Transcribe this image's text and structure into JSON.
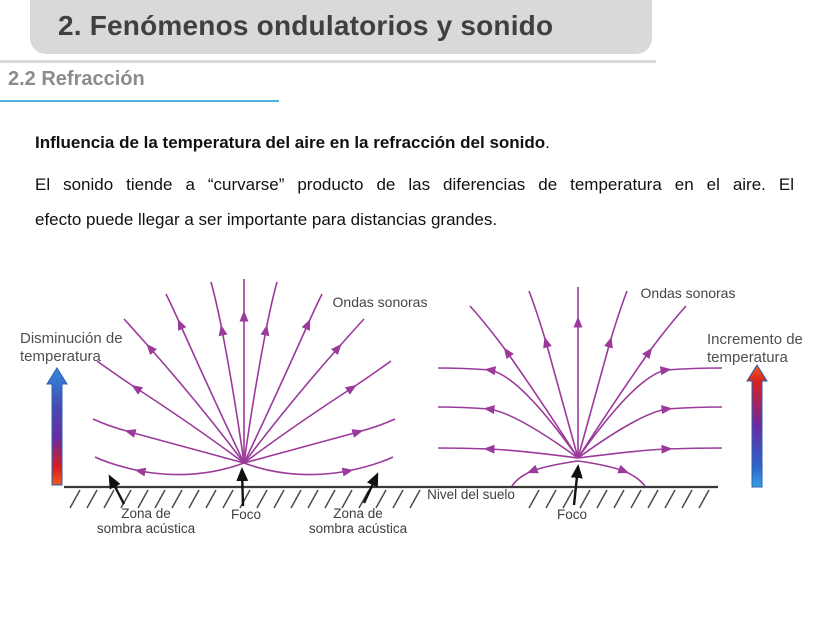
{
  "slide": {
    "header_title": "2. Fenómenos ondulatorios y sonido",
    "section_title": "2.2 Refracción",
    "body": {
      "heading": "Influencia de la temperatura del aire en la refracción del sonido",
      "heading_suffix": ".",
      "line1": "El sonido tiende a “curvarse” producto de las diferencias de temperatura en el aire. El",
      "line2": "efecto puede llegar a ser importante para distancias grandes."
    }
  },
  "figure": {
    "left_diagram": {
      "temp_label_line1": "Disminución de",
      "temp_label_line2": "temperatura",
      "waves_label": "Ondas sonoras",
      "shadow_left_line1": "Zona de",
      "shadow_left_line2": "sombra acústica",
      "focus_label": "Foco",
      "shadow_right_line1": "Zona de",
      "shadow_right_line2": "sombra acústica"
    },
    "right_diagram": {
      "temp_label_line1": "Incremento de",
      "temp_label_line2": "temperatura",
      "waves_label": "Ondas sonoras",
      "ground_label": "Nivel del suelo",
      "focus_label": "Foco"
    },
    "colors": {
      "wave_purple": "#9b3a9b",
      "ground_dark": "#3a3a3a",
      "black_arrow": "#111111",
      "cold_blue": "#2e8ae0",
      "violet_mid": "#6a2ba0",
      "hot_red": "#d81f1f",
      "hot_orange": "#f05a1e"
    }
  },
  "theme": {
    "header_bg": "#d9d9d9",
    "header_text": "#404040",
    "section_text": "#8c8c8c",
    "accent_underline": "#4fb3e0",
    "body_text": "#111111"
  }
}
